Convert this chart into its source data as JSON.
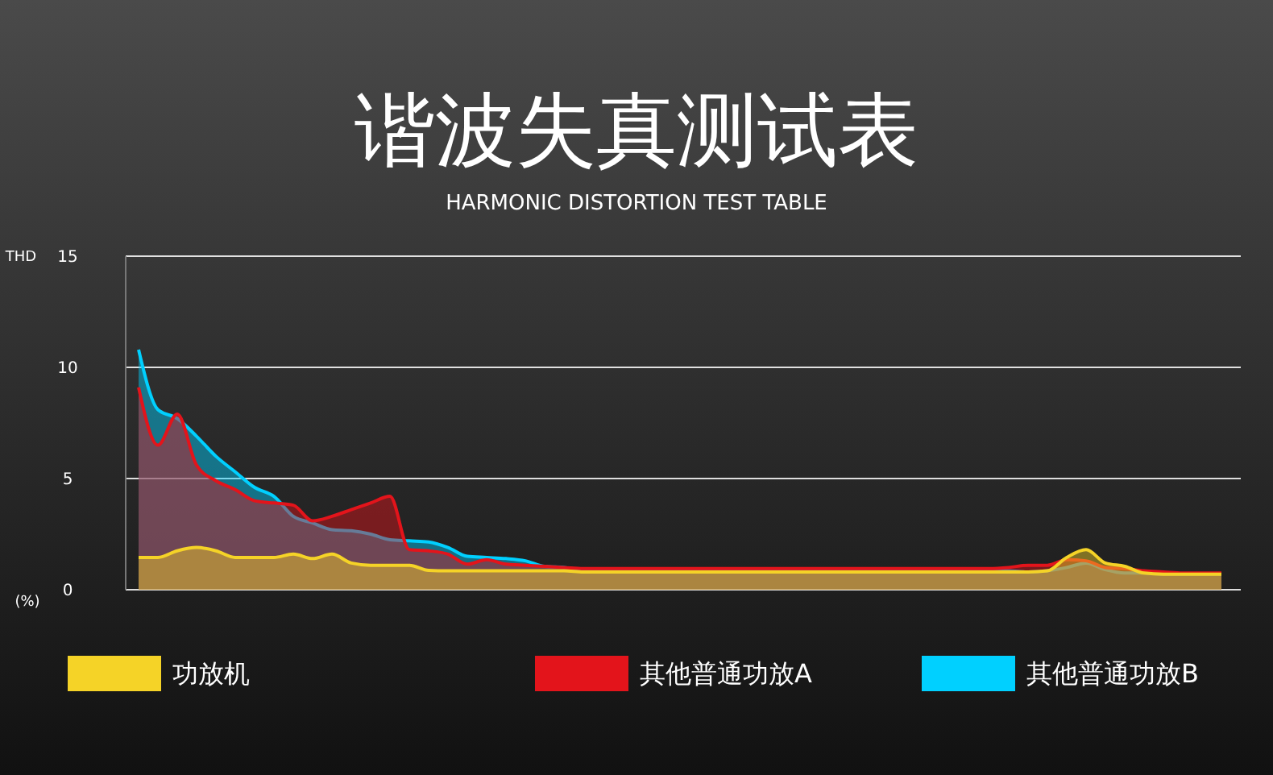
{
  "chart_data": {
    "type": "area",
    "title": "谐波失真测试表",
    "subtitle": "HARMONIC DISTORTION TEST TABLE",
    "ylabel": "THD",
    "annotations": [
      "(%)"
    ],
    "categories": [
      null,
      null,
      null,
      null,
      null,
      null,
      null,
      null,
      null,
      null,
      null,
      null,
      null,
      null,
      null,
      null,
      null,
      null,
      null,
      null,
      null,
      null,
      null,
      null,
      null,
      null,
      null,
      null,
      null,
      null,
      null,
      null,
      null,
      null,
      null,
      null,
      null,
      null,
      null,
      null,
      null,
      null,
      null,
      null,
      null,
      null,
      null,
      null,
      null,
      null,
      null,
      null,
      null,
      null,
      null,
      null,
      null
    ],
    "series": [
      {
        "name": "功放机",
        "color": "#f5d327",
        "values": [
          1.45,
          1.45,
          1.75,
          1.9,
          1.75,
          1.45,
          1.45,
          1.45,
          1.6,
          1.4,
          1.6,
          1.2,
          1.1,
          1.1,
          1.1,
          0.87,
          0.85,
          0.85,
          0.85,
          0.85,
          0.85,
          0.85,
          0.85,
          0.8,
          0.8,
          0.8,
          0.8,
          0.8,
          0.8,
          0.8,
          0.8,
          0.8,
          0.8,
          0.8,
          0.8,
          0.8,
          0.8,
          0.8,
          0.8,
          0.8,
          0.8,
          0.8,
          0.8,
          0.8,
          0.8,
          0.8,
          0.8,
          0.85,
          1.45,
          1.8,
          1.2,
          1.05,
          0.75,
          0.7,
          0.7,
          0.7,
          0.7
        ]
      },
      {
        "name": "其他普通功放A",
        "color": "#e3141b",
        "values": [
          9.1,
          6.5,
          7.9,
          5.6,
          4.9,
          4.5,
          4.0,
          3.9,
          3.8,
          3.1,
          3.3,
          3.6,
          3.9,
          4.2,
          1.8,
          1.75,
          1.6,
          1.15,
          1.35,
          1.15,
          1.1,
          1.05,
          1.0,
          0.95,
          0.95,
          0.95,
          0.95,
          0.95,
          0.95,
          0.95,
          0.95,
          0.95,
          0.95,
          0.95,
          0.95,
          0.95,
          0.95,
          0.95,
          0.95,
          0.95,
          0.95,
          0.95,
          0.95,
          0.95,
          0.95,
          1.0,
          1.1,
          1.1,
          1.35,
          1.3,
          1.0,
          0.95,
          0.85,
          0.8,
          0.75,
          0.75,
          0.75
        ]
      },
      {
        "name": "其他普通功放B",
        "color": "#00d0ff",
        "values": [
          10.8,
          8.1,
          7.7,
          6.9,
          6.0,
          5.3,
          4.6,
          4.2,
          3.3,
          3.0,
          2.7,
          2.65,
          2.5,
          2.25,
          2.2,
          2.15,
          1.9,
          1.5,
          1.45,
          1.4,
          1.3,
          1.05,
          1.0,
          0.9,
          0.9,
          0.9,
          0.9,
          0.9,
          0.9,
          0.9,
          0.9,
          0.9,
          0.9,
          0.9,
          0.9,
          0.9,
          0.9,
          0.9,
          0.9,
          0.9,
          0.9,
          0.9,
          0.9,
          0.9,
          0.9,
          0.85,
          0.8,
          0.85,
          1.0,
          1.2,
          0.9,
          0.75,
          0.75,
          0.7,
          0.7,
          0.7,
          0.7
        ]
      }
    ],
    "ylim": [
      0,
      15
    ],
    "yticks": [
      0,
      5,
      10,
      15
    ],
    "grid": "y",
    "legend": "bottom"
  }
}
